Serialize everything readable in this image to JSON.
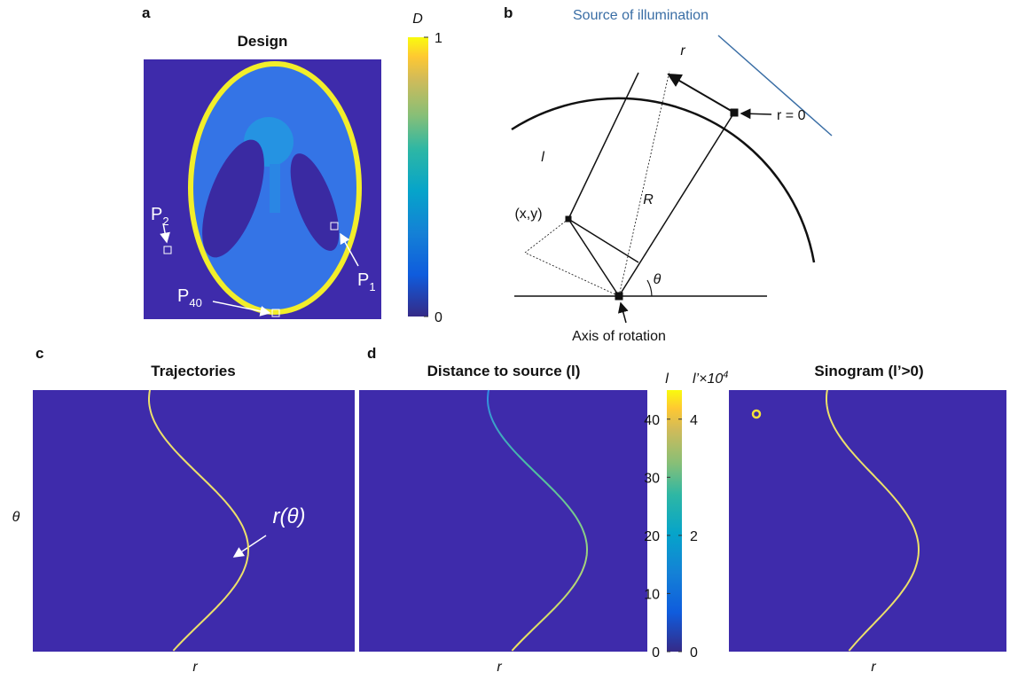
{
  "panel_a": {
    "letter": "a",
    "title": "Design",
    "colorbar": {
      "label": "D",
      "ticks": [
        0,
        1
      ],
      "range": [
        0,
        1
      ]
    },
    "points": [
      {
        "name": "P",
        "sub": "2"
      },
      {
        "name": "P",
        "sub": "1"
      },
      {
        "name": "P",
        "sub": "40"
      }
    ]
  },
  "panel_b": {
    "letter": "b",
    "source_label": "Source of illumination",
    "r_label": "r",
    "r0_label": "r = 0",
    "l_label": "l",
    "R_label": "R",
    "point_label": "(x,y)",
    "theta_label": "θ",
    "axis_label": "Axis of rotation"
  },
  "panel_c": {
    "letter": "c",
    "title": "Trajectories",
    "curve_label": "r(θ)",
    "y_label": "θ",
    "x_label": "r"
  },
  "panel_d": {
    "letter": "d",
    "title": "Distance to source (l)",
    "x_label": "r",
    "colorbar": {
      "l_label": "l",
      "l_ticks": [
        0,
        10,
        20,
        30,
        40
      ],
      "l_range": [
        0,
        45
      ],
      "lp_label": "l’×10",
      "lp_sup": "4",
      "lp_ticks": [
        0,
        2,
        4
      ],
      "lp_range": [
        0,
        4.5
      ]
    }
  },
  "panel_e": {
    "title": "Sinogram (l’>0)",
    "x_label": "r"
  }
}
